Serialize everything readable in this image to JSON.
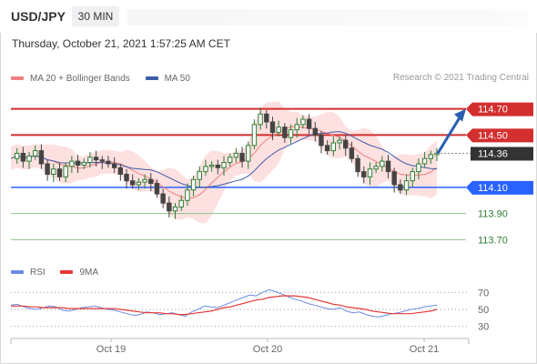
{
  "header": {
    "symbol": "USD/JPY",
    "timeframe": "30 MIN",
    "datetime": "Thursday, October 21, 2021 1:57:25 AM CET"
  },
  "legend": {
    "ma20_label": "MA 20 + Bollinger Bands",
    "ma50_label": "MA 50",
    "credit": "Research © 2021 Trading Central"
  },
  "rsi_legend": {
    "rsi_label": "RSI",
    "ma_label": "9MA"
  },
  "colors": {
    "bullish": "#2e7d32",
    "bearish": "#444444",
    "resistance": "#d32f2f",
    "pivot": "#2962ff",
    "support": "#2e7d32",
    "bollinger": "#fde0e0",
    "ma20": "#f08080",
    "ma50": "#3e5ca8",
    "rsi": "#6a8ae6",
    "rsi_ma": "#e53935",
    "arrow": "#2a5db0",
    "last_price_bg": "#333333"
  },
  "chart_data": {
    "type": "candlestick",
    "x_ticks": [
      "Oct 19",
      "Oct 20",
      "Oct 21"
    ],
    "levels": [
      {
        "value": 114.7,
        "label": "114.70",
        "kind": "resistance"
      },
      {
        "value": 114.5,
        "label": "114.50",
        "kind": "resistance"
      },
      {
        "value": 114.36,
        "label": "114.36",
        "kind": "last"
      },
      {
        "value": 114.1,
        "label": "114.10",
        "kind": "pivot"
      },
      {
        "value": 113.9,
        "label": "113.90",
        "kind": "support"
      },
      {
        "value": 113.7,
        "label": "113.70",
        "kind": "support"
      }
    ],
    "ylim": [
      113.55,
      114.85
    ],
    "targets": {
      "from": 114.36,
      "to": 114.7
    },
    "price_series": [
      114.32,
      114.36,
      114.3,
      114.34,
      114.38,
      114.28,
      114.2,
      114.24,
      114.18,
      114.26,
      114.3,
      114.27,
      114.29,
      114.33,
      114.31,
      114.3,
      114.28,
      114.25,
      114.2,
      114.15,
      114.12,
      114.14,
      114.16,
      114.13,
      114.05,
      113.98,
      113.92,
      113.95,
      114.0,
      114.08,
      114.16,
      114.22,
      114.26,
      114.27,
      114.25,
      114.29,
      114.33,
      114.36,
      114.3,
      114.42,
      114.58,
      114.66,
      114.6,
      114.52,
      114.56,
      114.48,
      114.54,
      114.58,
      114.62,
      114.55,
      114.5,
      114.42,
      114.38,
      114.44,
      114.46,
      114.4,
      114.32,
      114.22,
      114.18,
      114.24,
      114.26,
      114.3,
      114.22,
      114.12,
      114.08,
      114.15,
      114.22,
      114.28,
      114.32,
      114.35,
      114.36
    ],
    "rsi": {
      "ylim": [
        20,
        80
      ],
      "levels": [
        70,
        50,
        30
      ],
      "rsi_values": [
        55,
        56,
        53,
        51,
        50,
        52,
        54,
        53,
        49,
        48,
        50,
        52,
        53,
        54,
        52,
        50,
        49,
        47,
        45,
        43,
        44,
        47,
        46,
        44,
        45,
        46,
        44,
        42,
        47,
        50,
        54,
        53,
        52,
        55,
        58,
        61,
        64,
        67,
        66,
        70,
        73,
        71,
        68,
        65,
        62,
        60,
        57,
        55,
        53,
        51,
        50,
        52,
        48,
        46,
        47,
        44,
        42,
        41,
        43,
        45,
        46,
        48,
        50,
        51,
        53,
        54,
        55
      ],
      "ma_values": [
        54,
        54,
        54,
        53,
        53,
        52,
        52,
        52,
        52,
        51,
        51,
        51,
        51,
        51,
        51,
        51,
        51,
        50,
        49,
        48,
        47,
        46,
        46,
        46,
        45,
        45,
        44,
        44,
        45,
        46,
        47,
        48,
        50,
        52,
        53,
        55,
        57,
        59,
        61,
        62,
        64,
        65,
        66,
        66,
        66,
        65,
        64,
        62,
        60,
        58,
        56,
        55,
        53,
        52,
        51,
        50,
        48,
        47,
        46,
        45,
        45,
        45,
        45,
        46,
        47,
        48,
        50
      ]
    }
  }
}
